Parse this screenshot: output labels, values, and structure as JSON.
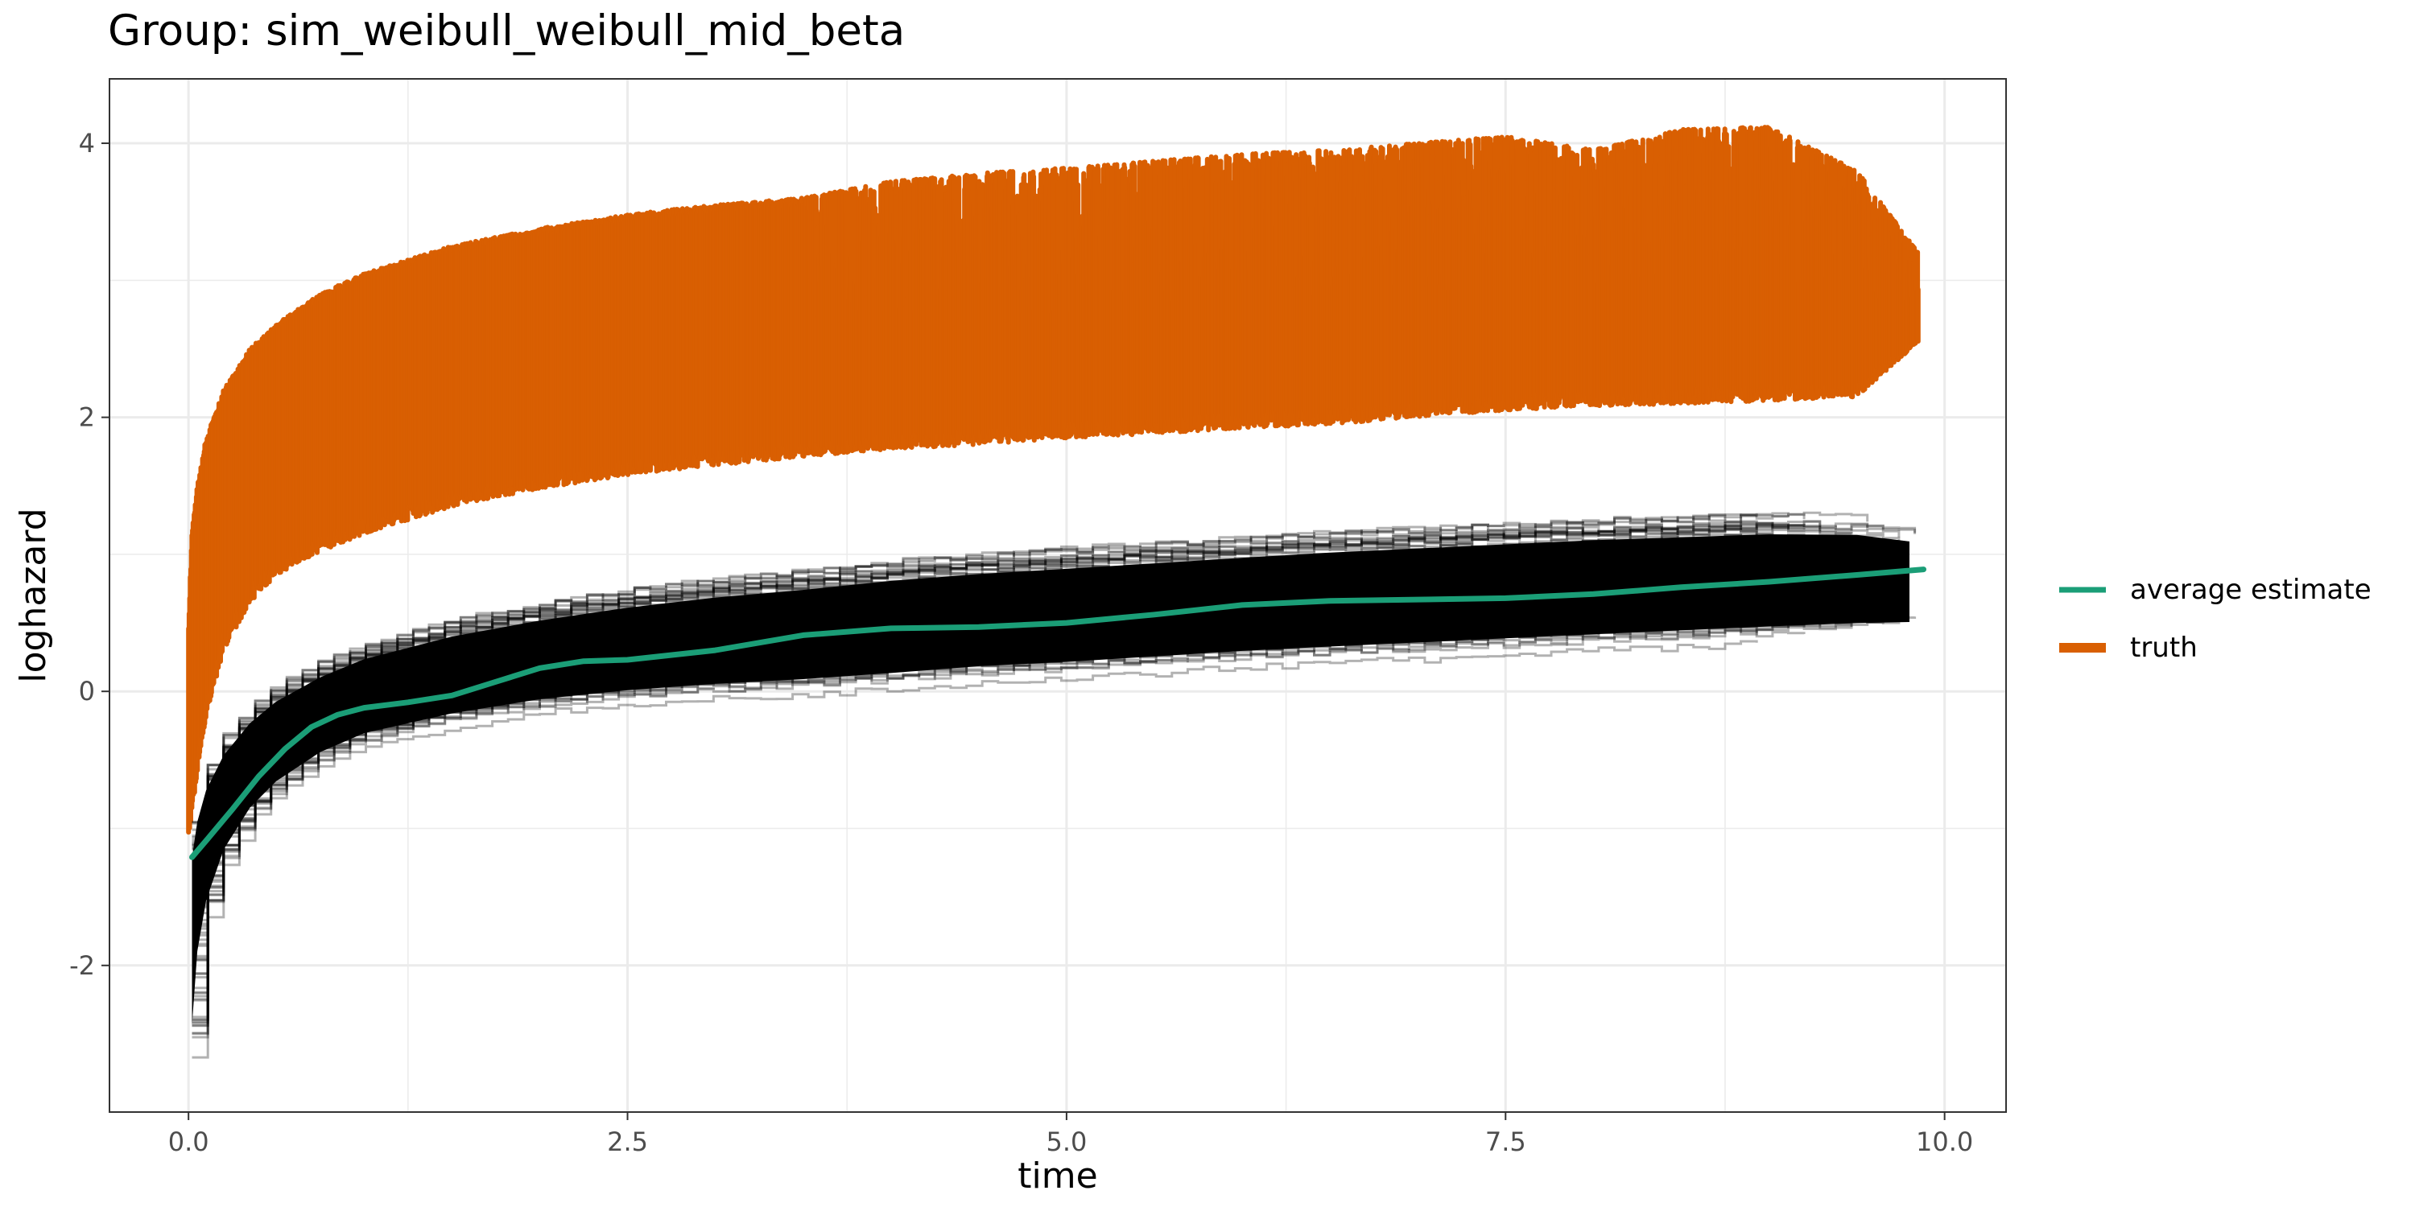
{
  "colors": {
    "truth": "#D95F02",
    "average_estimate": "#1B9E77",
    "replicates": "#000000",
    "grid_major": "#EBEBEB",
    "panel_border": "#333333"
  },
  "chart_data": {
    "type": "line",
    "title": "Group: sim_weibull_weibull_mid_beta",
    "xlabel": "time",
    "ylabel": "loghazard",
    "xlim": [
      -0.45,
      10.35
    ],
    "ylim": [
      -3.07,
      4.47
    ],
    "x_ticks": [
      0.0,
      2.5,
      5.0,
      7.5,
      10.0
    ],
    "x_tick_labels": [
      "0.0",
      "2.5",
      "5.0",
      "7.5",
      "10.0"
    ],
    "y_ticks": [
      -2,
      0,
      2,
      4
    ],
    "y_tick_labels": [
      "-2",
      "0",
      "2",
      "4"
    ],
    "grid": true,
    "legend_position": "right",
    "legend": [
      {
        "label": "average estimate",
        "color": "#1B9E77"
      },
      {
        "label": "truth",
        "color": "#D95F02"
      }
    ],
    "series": [
      {
        "name": "average estimate",
        "color": "#1B9E77",
        "x": [
          0.02,
          0.1,
          0.25,
          0.4,
          0.55,
          0.7,
          0.85,
          1.0,
          1.25,
          1.5,
          1.75,
          2.0,
          2.25,
          2.5,
          3.0,
          3.5,
          4.0,
          4.5,
          5.0,
          5.5,
          6.0,
          6.5,
          7.0,
          7.5,
          8.0,
          8.5,
          9.0,
          9.5,
          9.88
        ],
        "y": [
          -1.21,
          -1.09,
          -0.86,
          -0.62,
          -0.42,
          -0.26,
          -0.17,
          -0.12,
          -0.08,
          -0.03,
          0.07,
          0.17,
          0.22,
          0.23,
          0.3,
          0.41,
          0.46,
          0.47,
          0.5,
          0.56,
          0.63,
          0.66,
          0.67,
          0.68,
          0.71,
          0.76,
          0.8,
          0.85,
          0.89
        ]
      },
      {
        "name": "truth",
        "color": "#D95F02",
        "x": [
          0.0,
          0.02,
          0.05,
          0.1,
          0.2,
          0.35,
          0.5,
          0.75,
          1.0,
          1.5,
          2.0,
          2.5,
          3.0,
          3.5,
          4.0,
          4.5,
          5.0,
          5.5,
          6.0,
          6.5,
          7.0,
          7.5,
          8.0,
          8.5,
          9.0,
          9.5,
          9.85
        ],
        "y_low": [
          -1.05,
          -0.9,
          -0.6,
          -0.2,
          0.3,
          0.65,
          0.85,
          1.02,
          1.15,
          1.35,
          1.48,
          1.58,
          1.65,
          1.71,
          1.77,
          1.8,
          1.85,
          1.88,
          1.92,
          1.95,
          2.0,
          2.05,
          2.08,
          2.1,
          2.12,
          2.15,
          2.55
        ],
        "y_high": [
          0.5,
          1.2,
          1.5,
          1.85,
          2.2,
          2.5,
          2.68,
          2.9,
          3.05,
          3.25,
          3.38,
          3.48,
          3.55,
          3.6,
          3.72,
          3.78,
          3.82,
          3.87,
          3.92,
          3.95,
          4.0,
          4.05,
          3.95,
          4.1,
          4.12,
          3.8,
          3.2
        ]
      },
      {
        "name": "",
        "color": "#000000",
        "x": [
          0.02,
          0.05,
          0.1,
          0.2,
          0.35,
          0.5,
          0.75,
          1.0,
          1.5,
          2.0,
          2.5,
          3.0,
          3.5,
          4.0,
          4.5,
          5.0,
          5.5,
          6.0,
          6.5,
          7.0,
          7.5,
          8.0,
          8.5,
          9.0,
          9.5,
          9.8
        ],
        "y_low": [
          -2.7,
          -2.1,
          -1.7,
          -1.3,
          -0.98,
          -0.78,
          -0.56,
          -0.42,
          -0.28,
          -0.18,
          -0.12,
          -0.08,
          -0.05,
          -0.01,
          0.04,
          0.07,
          0.11,
          0.15,
          0.18,
          0.21,
          0.24,
          0.27,
          0.3,
          0.33,
          0.36,
          0.38
        ],
        "y_high": [
          -0.95,
          -0.75,
          -0.55,
          -0.32,
          -0.1,
          0.05,
          0.22,
          0.35,
          0.52,
          0.64,
          0.74,
          0.82,
          0.88,
          0.95,
          1.0,
          1.04,
          1.08,
          1.12,
          1.16,
          1.19,
          1.22,
          1.25,
          1.27,
          1.29,
          1.28,
          1.22
        ]
      }
    ]
  }
}
